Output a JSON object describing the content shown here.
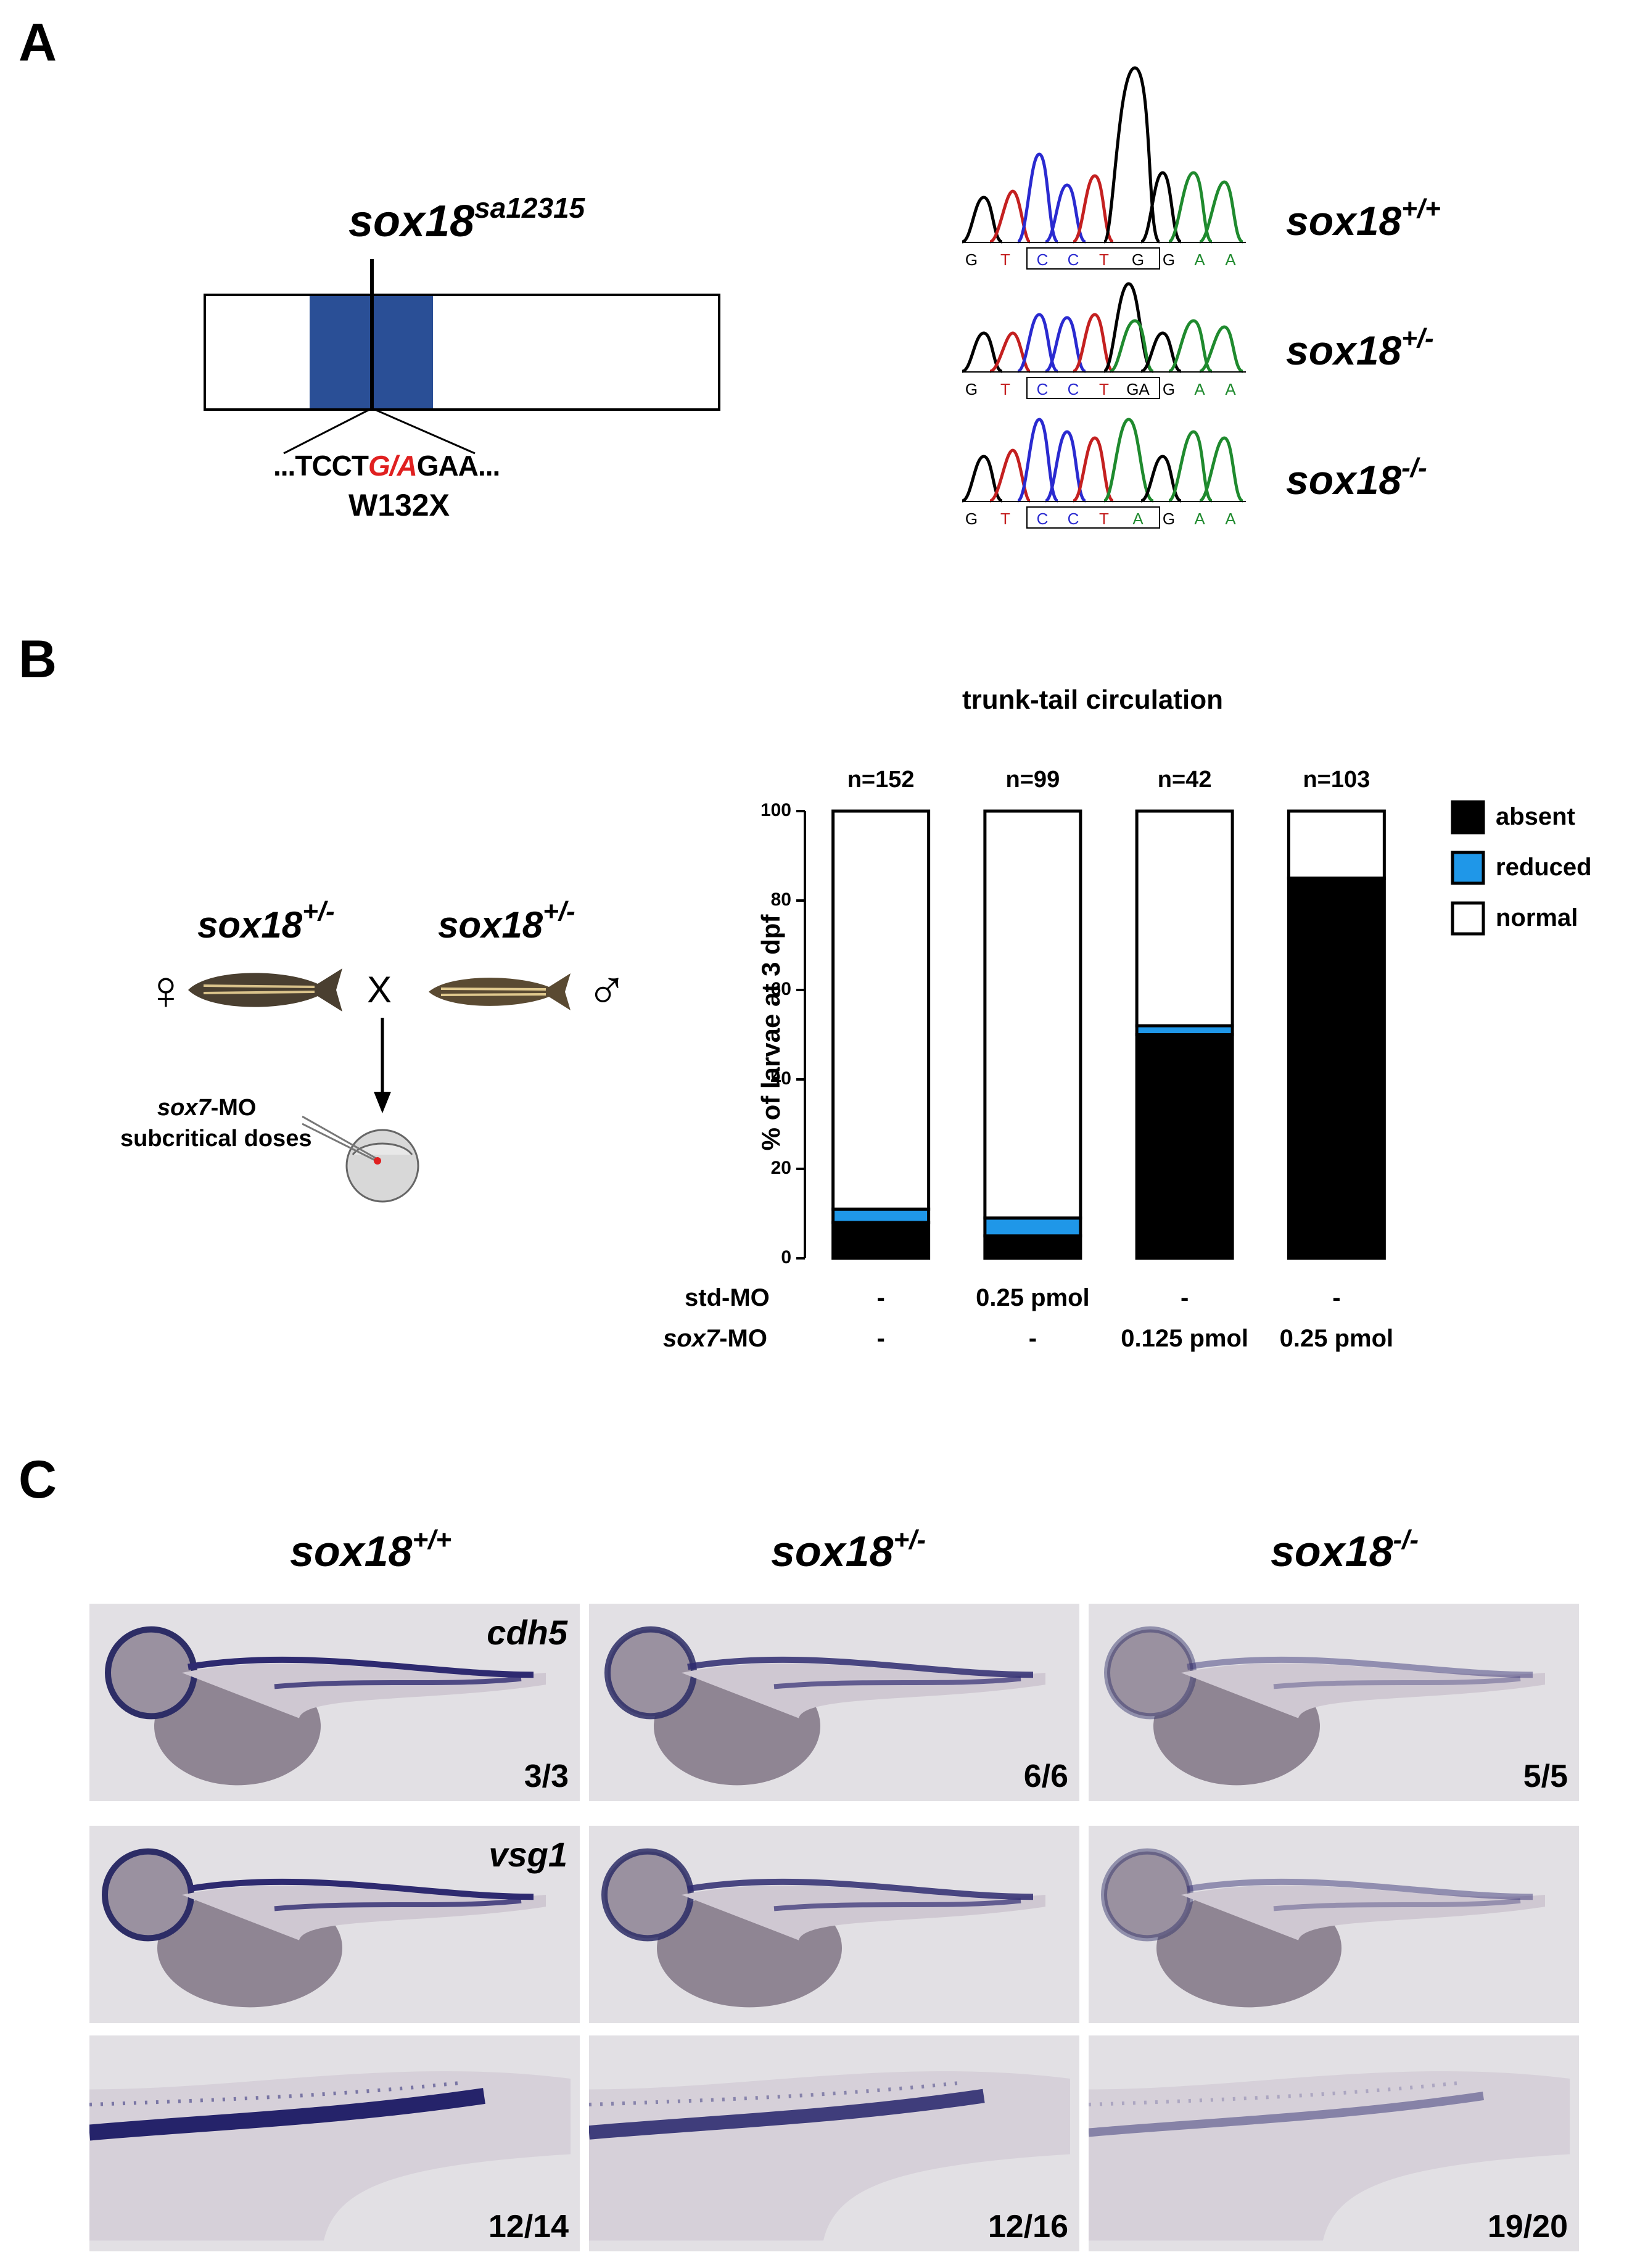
{
  "panels": {
    "a": {
      "letter": "A",
      "allele_gene": "sox18",
      "allele_sup": "sa12315",
      "sequence_prefix": "...TCCT",
      "sequence_mut": "G/A",
      "sequence_suffix": "GAA...",
      "mutation": "W132X",
      "traces": [
        {
          "bases": [
            "G",
            "T",
            "C",
            "C",
            "T",
            "G",
            "G",
            "A",
            "A"
          ],
          "genotype": "sox18",
          "sup": "+/+"
        },
        {
          "bases": [
            "G",
            "T",
            "C",
            "C",
            "T",
            "GA",
            "G",
            "A",
            "A"
          ],
          "genotype": "sox18",
          "sup": "+/-"
        },
        {
          "bases": [
            "G",
            "T",
            "C",
            "C",
            "T",
            "A",
            "G",
            "A",
            "A"
          ],
          "genotype": "sox18",
          "sup": "-/-"
        }
      ]
    },
    "b": {
      "letter": "B",
      "parent_gene": "sox18",
      "parent_sup": "+/-",
      "female_symbol": "♀",
      "male_symbol": "♂",
      "cross": "X",
      "mo_gene": "sox7",
      "mo_suffix": "-MO",
      "mo_note": "subcritical doses",
      "row_std": "std-MO",
      "row_sox7_gene": "sox7",
      "row_sox7_suffix": "-MO"
    },
    "c": {
      "letter": "C",
      "columns": [
        {
          "gene": "sox18",
          "sup": "+/+"
        },
        {
          "gene": "sox18",
          "sup": "+/-"
        },
        {
          "gene": "sox18",
          "sup": "-/-"
        }
      ],
      "rows": [
        {
          "gene": "cdh5",
          "counts": [
            "3/3",
            "6/6",
            "5/5"
          ]
        },
        {
          "gene": "vsg1",
          "counts": [
            "",
            "",
            ""
          ]
        },
        {
          "gene": "",
          "counts": [
            "12/14",
            "12/16",
            "19/20"
          ]
        }
      ]
    }
  },
  "chart_data": {
    "type": "bar",
    "stacked": true,
    "title": "trunk-tail circulation",
    "ylabel": "% of larvae at 3 dpf",
    "ylim": [
      0,
      100
    ],
    "yticks": [
      0,
      20,
      40,
      60,
      80,
      100
    ],
    "categories": [
      "n=152",
      "n=99",
      "n=42",
      "n=103"
    ],
    "conditions": {
      "std-MO": [
        "-",
        "0.25 pmol",
        "-",
        "-"
      ],
      "sox7-MO": [
        "-",
        "-",
        "0.125 pmol",
        "0.25 pmol"
      ]
    },
    "series": [
      {
        "name": "absent",
        "color": "#000000",
        "values": [
          8,
          5,
          50,
          85
        ]
      },
      {
        "name": "reduced",
        "color": "#1f97e8",
        "values": [
          3,
          4,
          2,
          0
        ]
      },
      {
        "name": "normal",
        "color": "#ffffff",
        "values": [
          89,
          91,
          48,
          15
        ]
      }
    ],
    "legend_position": "right"
  }
}
